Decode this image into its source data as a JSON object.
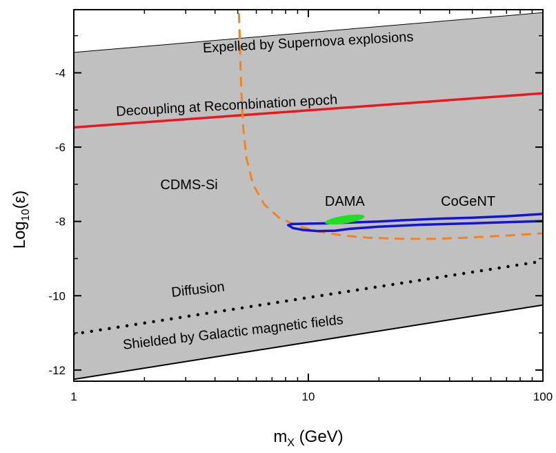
{
  "chart_data": {
    "type": "line",
    "title": "",
    "xlabel": {
      "main": "m",
      "sub": "X",
      "rest": " (GeV)"
    },
    "ylabel": {
      "main": "Log",
      "sub": "10",
      "rest": "(ε)"
    },
    "x_scale": "log",
    "xlim": [
      1,
      100
    ],
    "ylim": [
      -12.3,
      -2.3
    ],
    "x_ticks": [
      {
        "value": 1,
        "label": "1"
      },
      {
        "value": 10,
        "label": "10"
      },
      {
        "value": 100,
        "label": "100"
      }
    ],
    "y_ticks": [
      {
        "value": -12,
        "label": "-12"
      },
      {
        "value": -10,
        "label": "-10"
      },
      {
        "value": -8,
        "label": "-8"
      },
      {
        "value": -6,
        "label": "-6"
      },
      {
        "value": -4,
        "label": "-4"
      }
    ],
    "y_minor_ticks": [
      -11,
      -9,
      -7,
      -5,
      -3
    ],
    "allowed_region": {
      "color": "#c0c0c0",
      "upper_boundary": [
        [
          1,
          -3.45
        ],
        [
          100,
          -2.38
        ]
      ],
      "lower_boundary": [
        [
          1,
          -12.25
        ],
        [
          100,
          -10.25
        ]
      ]
    },
    "series": [
      {
        "name": "Decoupling at Recombination epoch",
        "color": "#e8191e",
        "style": "solid",
        "points": [
          [
            1,
            -5.47
          ],
          [
            100,
            -4.55
          ]
        ]
      },
      {
        "name": "Diffusion",
        "color": "#000000",
        "style": "dotted",
        "points": [
          [
            1,
            -11.03
          ],
          [
            100,
            -9.07
          ]
        ]
      },
      {
        "name": "CDMS-Si",
        "color": "#f58220",
        "style": "dashed",
        "points": [
          [
            5.06,
            -2.4
          ],
          [
            5.12,
            -3.5
          ],
          [
            5.18,
            -4.5
          ],
          [
            5.28,
            -5.5
          ],
          [
            5.45,
            -6.3
          ],
          [
            5.8,
            -7.0
          ],
          [
            6.5,
            -7.55
          ],
          [
            7.5,
            -7.9
          ],
          [
            9,
            -8.12
          ],
          [
            11,
            -8.27
          ],
          [
            14,
            -8.38
          ],
          [
            18,
            -8.44
          ],
          [
            25,
            -8.47
          ],
          [
            35,
            -8.47
          ],
          [
            50,
            -8.43
          ],
          [
            70,
            -8.38
          ],
          [
            100,
            -8.32
          ]
        ]
      },
      {
        "name": "CoGeNT",
        "color": "#1414d2",
        "style": "solid",
        "points": [
          [
            100,
            -7.8
          ],
          [
            70,
            -7.86
          ],
          [
            50,
            -7.9
          ],
          [
            35,
            -7.93
          ],
          [
            25,
            -7.97
          ],
          [
            20,
            -8.0
          ],
          [
            15,
            -8.03
          ],
          [
            12,
            -8.05
          ],
          [
            10,
            -8.06
          ],
          [
            8.5,
            -8.07
          ],
          [
            8.2,
            -8.1
          ],
          [
            8.6,
            -8.18
          ],
          [
            9.5,
            -8.23
          ],
          [
            11,
            -8.26
          ],
          [
            13,
            -8.25
          ],
          [
            15,
            -8.2
          ],
          [
            20,
            -8.14
          ],
          [
            30,
            -8.09
          ],
          [
            50,
            -8.05
          ],
          [
            70,
            -8.02
          ],
          [
            100,
            -7.99
          ]
        ]
      },
      {
        "name": "DAMA",
        "color": "#22dd22",
        "style": "filled-ellipse",
        "center": [
          14.3,
          -7.95
        ],
        "x_range": [
          11.8,
          17.5
        ],
        "y_range": [
          -8.05,
          -7.84
        ]
      }
    ],
    "annotations": [
      {
        "text": "Expelled by Supernova explosions",
        "x": 10,
        "y": -3.3,
        "angle": -3.1,
        "anchor": "middle"
      },
      {
        "text": "Decoupling at Recombination epoch",
        "x": 4.5,
        "y": -5.0,
        "angle": -3.1,
        "anchor": "middle"
      },
      {
        "text": "CDMS-Si",
        "x": 3.1,
        "y": -7.13,
        "angle": 0,
        "anchor": "middle"
      },
      {
        "text": "DAMA",
        "x": 14.3,
        "y": -7.58,
        "angle": 0,
        "anchor": "middle"
      },
      {
        "text": "CoGeNT",
        "x": 48,
        "y": -7.58,
        "angle": 0,
        "anchor": "middle"
      },
      {
        "text": "Diffusion",
        "x": 3.4,
        "y": -9.95,
        "angle": -6.5,
        "anchor": "middle"
      },
      {
        "text": "Shielded by Galactic magnetic fields",
        "x": 4.8,
        "y": -11.1,
        "angle": -6.6,
        "anchor": "middle"
      }
    ],
    "grid": false,
    "legend": "none"
  }
}
